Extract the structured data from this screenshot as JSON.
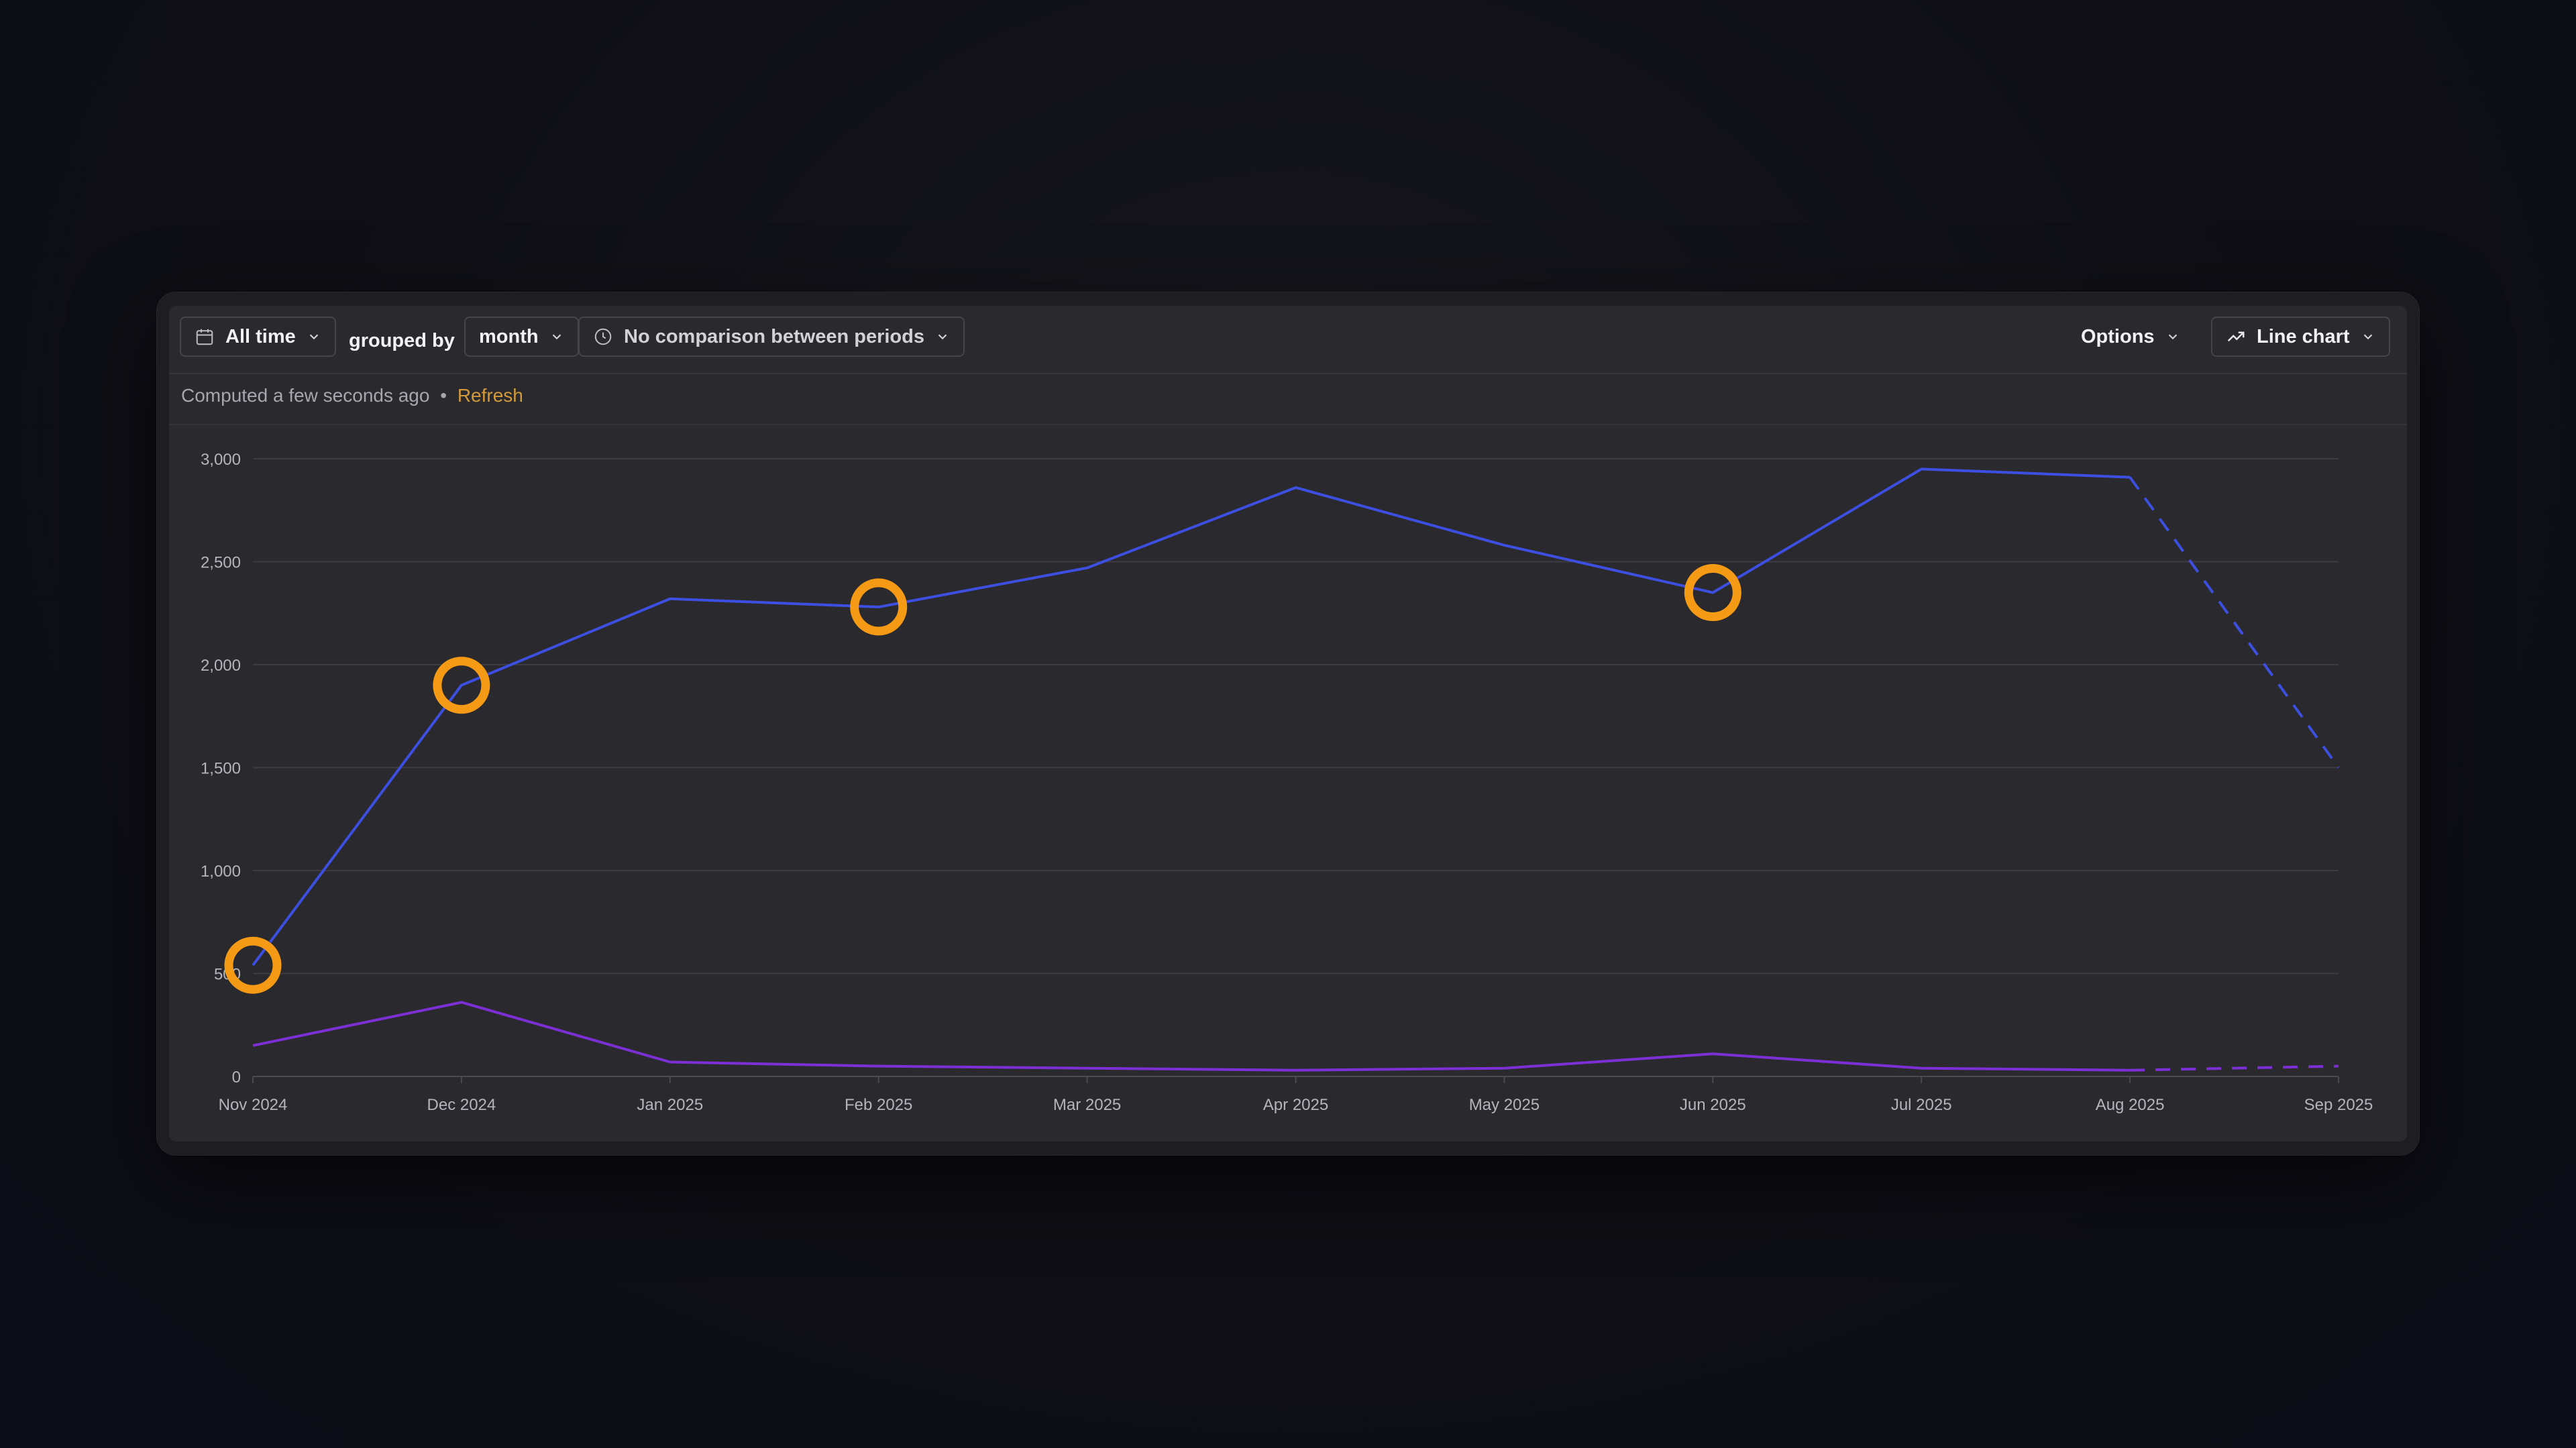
{
  "toolbar": {
    "date_range": "All time",
    "grouped_by_label": "grouped by",
    "interval": "month",
    "comparison": "No comparison between periods",
    "options_label": "Options",
    "chart_type_label": "Line chart"
  },
  "status": {
    "computed_text": "Computed a few seconds ago",
    "separator": "•",
    "refresh_label": "Refresh"
  },
  "colors": {
    "series_primary": "#3d4fe0",
    "series_secondary": "#7b2fd4",
    "highlight": "#f59a14"
  },
  "chart_data": {
    "type": "line",
    "categories": [
      "Nov 2024",
      "Dec 2024",
      "Jan 2025",
      "Feb 2025",
      "Mar 2025",
      "Apr 2025",
      "May 2025",
      "Jun 2025",
      "Jul 2025",
      "Aug 2025",
      "Sep 2025"
    ],
    "yticks": [
      "0",
      "500",
      "1,000",
      "1,500",
      "2,000",
      "2,500",
      "3,000"
    ],
    "ylim": [
      0,
      3000
    ],
    "grid": true,
    "series": [
      {
        "values": [
          540,
          1900,
          2320,
          2280,
          2470,
          2860,
          2580,
          2350,
          2950,
          2910,
          1500
        ],
        "color": "#3d4fe0",
        "dashed_from_index": 9
      },
      {
        "values": [
          150,
          360,
          70,
          50,
          40,
          30,
          40,
          110,
          40,
          30,
          50
        ],
        "color": "#7b2fd4",
        "dashed_from_index": 9
      }
    ],
    "highlighted_points": [
      {
        "series": 0,
        "index": 0
      },
      {
        "series": 0,
        "index": 1
      },
      {
        "series": 0,
        "index": 3
      },
      {
        "series": 0,
        "index": 7
      }
    ]
  }
}
